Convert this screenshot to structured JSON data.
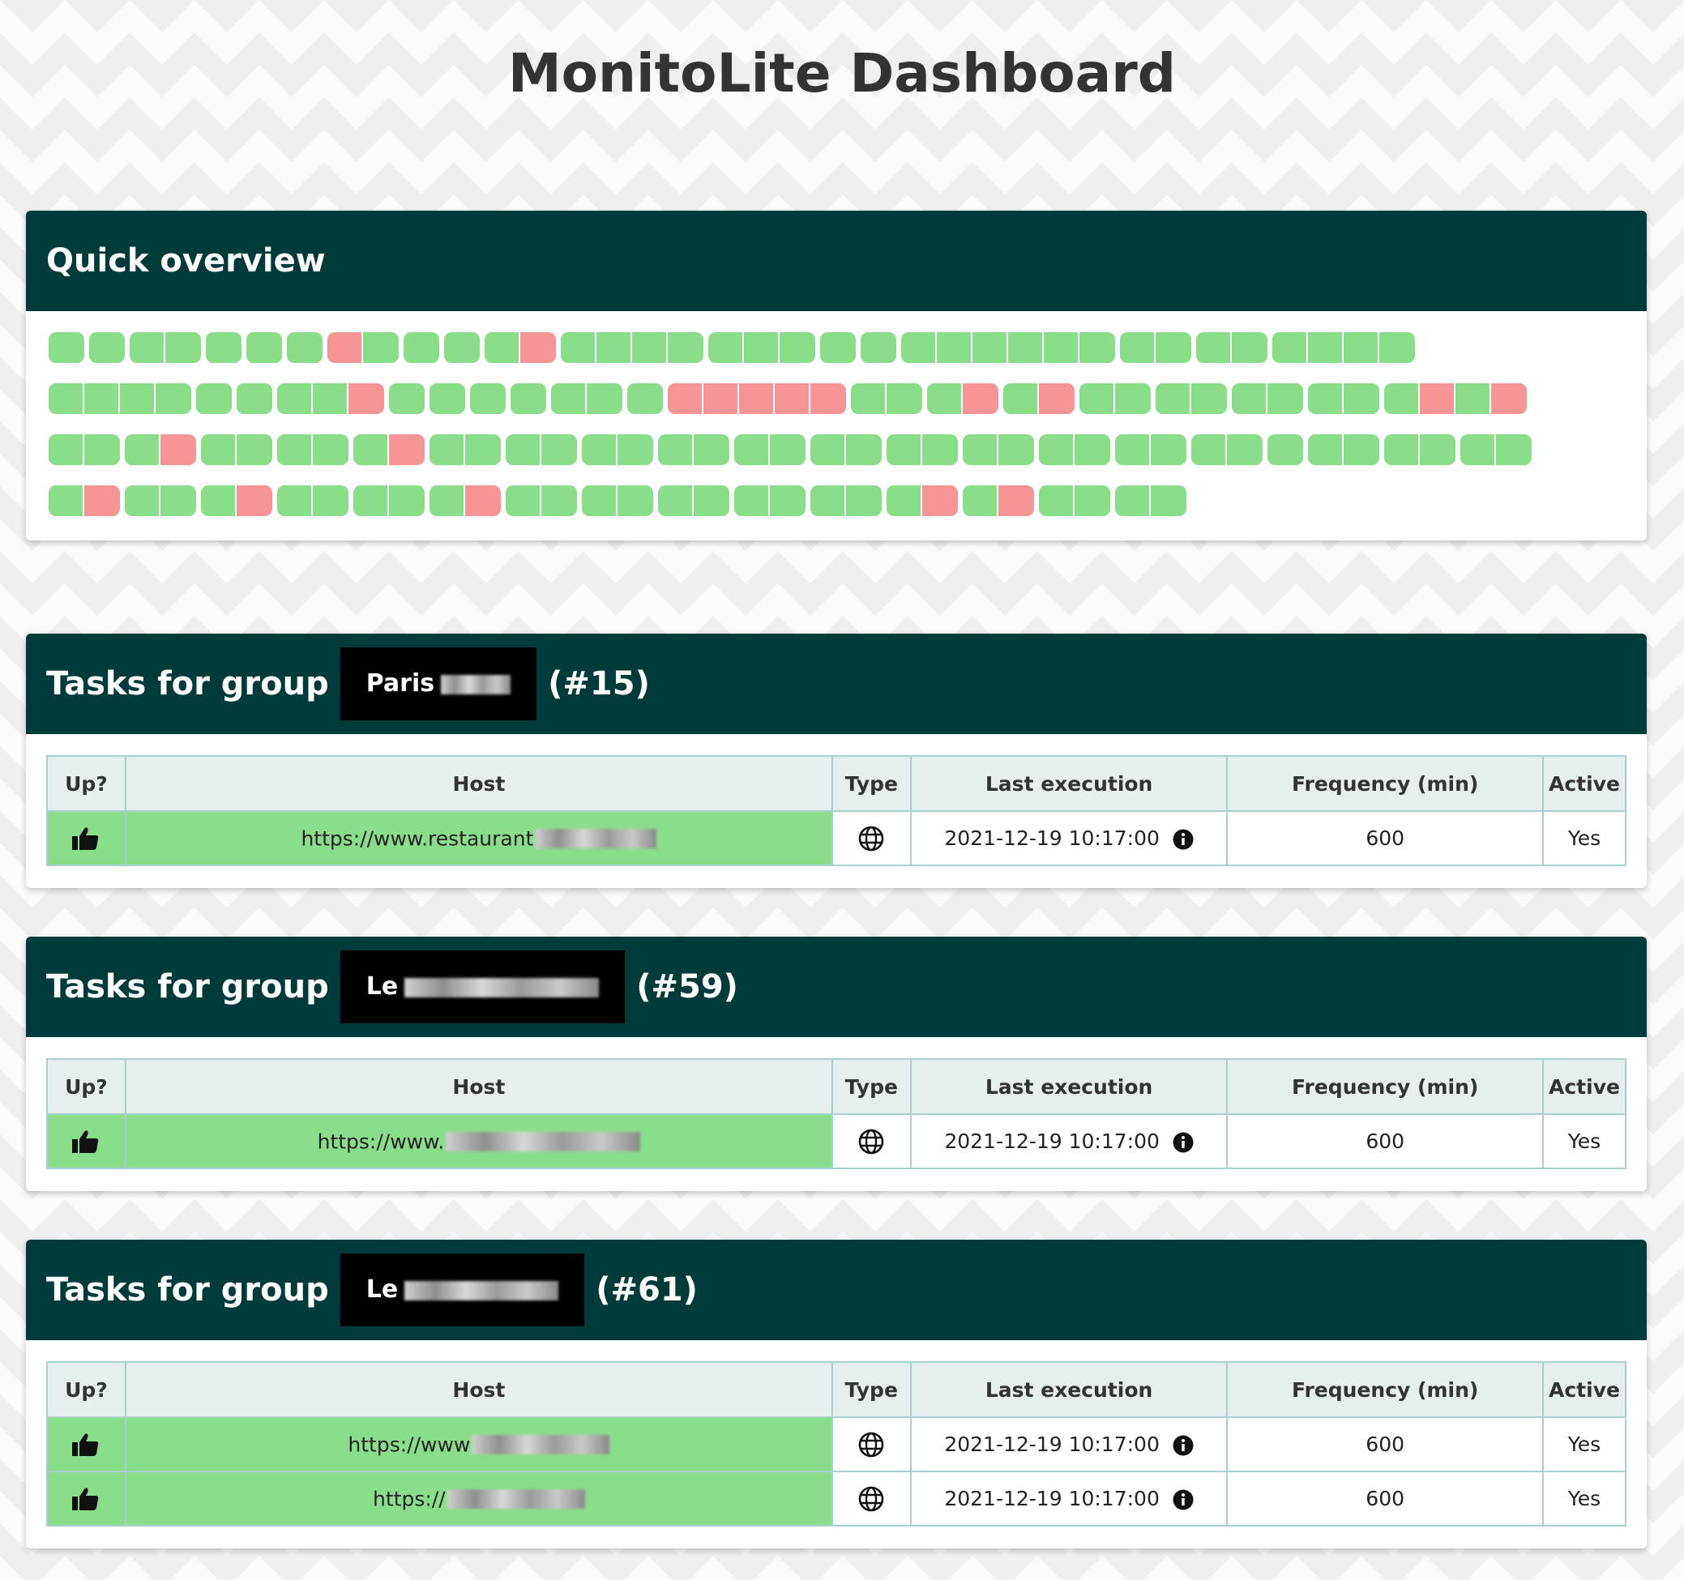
{
  "page": {
    "title": "MonitoLite Dashboard"
  },
  "overview": {
    "title": "Quick overview",
    "rows": [
      [
        [
          "up"
        ],
        [
          "up"
        ],
        [
          "up",
          "up"
        ],
        [
          "up"
        ],
        [
          "up"
        ],
        [
          "up"
        ],
        [
          "down",
          "up"
        ],
        [
          "up"
        ],
        [
          "up"
        ],
        [
          "up",
          "down"
        ],
        [
          "up",
          "up",
          "up",
          "up"
        ],
        [
          "up",
          "up",
          "up"
        ],
        [
          "up"
        ],
        [
          "up"
        ],
        [
          "up",
          "up",
          "up",
          "up",
          "up",
          "up"
        ],
        [
          "up",
          "up"
        ],
        [
          "up",
          "up"
        ],
        [
          "up",
          "up",
          "up",
          "up"
        ]
      ],
      [
        [
          "up",
          "up",
          "up",
          "up"
        ],
        [
          "up"
        ],
        [
          "up"
        ],
        [
          "up",
          "up",
          "down"
        ],
        [
          "up"
        ],
        [
          "up"
        ],
        [
          "up"
        ],
        [
          "up"
        ],
        [
          "up",
          "up"
        ],
        [
          "up"
        ],
        [
          "down",
          "down",
          "down",
          "down",
          "down"
        ],
        [
          "up",
          "up"
        ],
        [
          "up",
          "down"
        ],
        [
          "up",
          "down"
        ],
        [
          "up",
          "up"
        ],
        [
          "up",
          "up"
        ],
        [
          "up",
          "up"
        ],
        [
          "up",
          "up"
        ],
        [
          "up",
          "down",
          "up",
          "down"
        ]
      ],
      [
        [
          "up",
          "up"
        ],
        [
          "up",
          "down"
        ],
        [
          "up",
          "up"
        ],
        [
          "up",
          "up"
        ],
        [
          "up",
          "down"
        ],
        [
          "up",
          "up"
        ],
        [
          "up",
          "up"
        ],
        [
          "up",
          "up"
        ],
        [
          "up",
          "up"
        ],
        [
          "up",
          "up"
        ],
        [
          "up",
          "up"
        ],
        [
          "up",
          "up"
        ],
        [
          "up",
          "up"
        ],
        [
          "up",
          "up"
        ],
        [
          "up",
          "up"
        ],
        [
          "up",
          "up"
        ],
        [
          "up"
        ],
        [
          "up",
          "up"
        ],
        [
          "up",
          "up"
        ],
        [
          "up",
          "up"
        ]
      ],
      [
        [
          "up",
          "down"
        ],
        [
          "up",
          "up"
        ],
        [
          "up",
          "down"
        ],
        [
          "up",
          "up"
        ],
        [
          "up",
          "up"
        ],
        [
          "up",
          "down"
        ],
        [
          "up",
          "up"
        ],
        [
          "up",
          "up"
        ],
        [
          "up",
          "up"
        ],
        [
          "up",
          "up"
        ],
        [
          "up",
          "up"
        ],
        [
          "up",
          "down"
        ],
        [
          "up",
          "down"
        ],
        [
          "up",
          "up"
        ],
        [
          "up",
          "up"
        ]
      ]
    ]
  },
  "table_headers": {
    "up": "Up?",
    "host": "Host",
    "type": "Type",
    "last_execution": "Last execution",
    "frequency": "Frequency (min)",
    "active": "Active"
  },
  "groups": [
    {
      "prefix": "Tasks for group",
      "name": "Paris",
      "id": "(#15)",
      "tasks": [
        {
          "host": "https://www.restaurant",
          "last_execution": "2021-12-19 10:17:00",
          "frequency": "600",
          "active": "Yes"
        }
      ]
    },
    {
      "prefix": "Tasks for group",
      "name": "Le",
      "id": "(#59)",
      "tasks": [
        {
          "host": "https://www.",
          "last_execution": "2021-12-19 10:17:00",
          "frequency": "600",
          "active": "Yes"
        }
      ]
    },
    {
      "prefix": "Tasks for group",
      "name": "Le",
      "id": "(#61)",
      "tasks": [
        {
          "host": "https://www",
          "last_execution": "2021-12-19 10:17:00",
          "frequency": "600",
          "active": "Yes"
        },
        {
          "host": "https://",
          "last_execution": "2021-12-19 10:17:00",
          "frequency": "600",
          "active": "Yes"
        }
      ]
    }
  ],
  "colors": {
    "header_bg": "#003b3c",
    "up": "#8ade8a",
    "down": "#f59595",
    "table_header_bg": "#e6eeee"
  },
  "icons": {
    "up_status": "thumbs-up-icon",
    "type": "globe-icon",
    "info": "info-icon"
  }
}
